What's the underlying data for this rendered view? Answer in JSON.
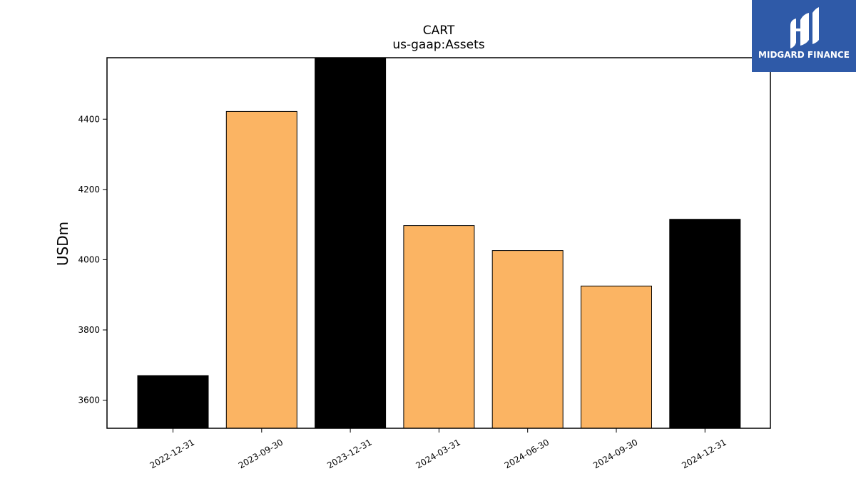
{
  "chart_data": {
    "type": "bar",
    "title": "CART",
    "subtitle": "us-gaap:Assets",
    "xlabel": "",
    "ylabel": "USDm",
    "categories": [
      "2022-12-31",
      "2023-09-30",
      "2023-12-31",
      "2024-03-31",
      "2024-06-30",
      "2024-09-30",
      "2024-12-31"
    ],
    "values": [
      3670,
      4422,
      4580,
      4097,
      4026,
      3925,
      4115
    ],
    "period_type": [
      "annual",
      "quarterly",
      "annual",
      "quarterly",
      "quarterly",
      "quarterly",
      "annual"
    ],
    "period_colors": {
      "annual": "#000000",
      "quarterly": "#fbb463"
    },
    "ylim": [
      3520,
      4575
    ],
    "yticks": [
      3600,
      3800,
      4000,
      4200,
      4400
    ],
    "grid": false,
    "legend": "none"
  },
  "logo": {
    "text": "MIDGARD FINANCE",
    "background": "#2f5aa8"
  }
}
